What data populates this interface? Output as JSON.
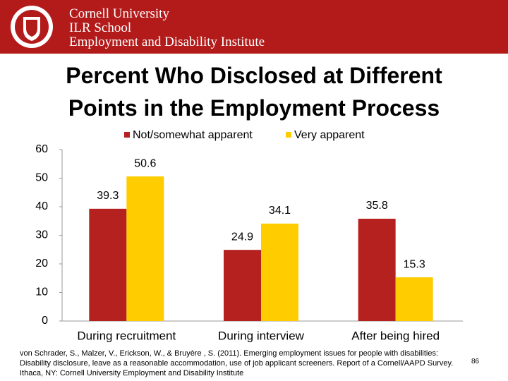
{
  "header": {
    "lines": [
      "Cornell University",
      "ILR School",
      "Employment and Disability Institute"
    ]
  },
  "chart_data": {
    "type": "bar",
    "title": "Percent Who Disclosed at Different Points in the Employment Process",
    "categories": [
      "During recruitment",
      "During interview",
      "After being hired"
    ],
    "series": [
      {
        "name": "Not/somewhat apparent",
        "color": "#b5211f",
        "values": [
          39.3,
          24.9,
          35.8
        ]
      },
      {
        "name": "Very apparent",
        "color": "#ffcc00",
        "values": [
          50.6,
          34.1,
          15.3
        ]
      }
    ],
    "ylim": [
      0,
      60
    ],
    "yticks": [
      0,
      10,
      20,
      30,
      40,
      50,
      60
    ],
    "grid": false,
    "legend": "top"
  },
  "footer": {
    "citation": "von Schrader, S., Malzer, V., Erickson, W., & Bruyère , S. (2011). Emerging employment issues for people with disabilities: Disability disclosure, leave as a reasonable accommodation, use of job applicant screeners. Report of a Cornell/AAPD Survey. Ithaca, NY: Cornell University Employment and Disability Institute",
    "page_number": "86"
  }
}
